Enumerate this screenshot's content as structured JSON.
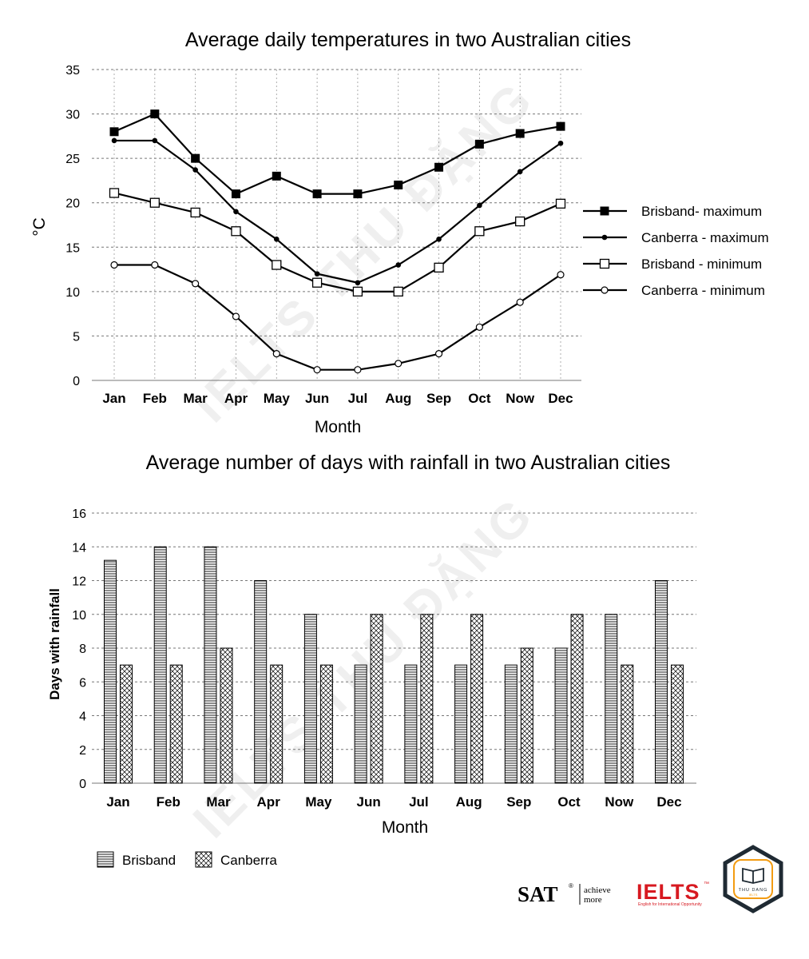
{
  "chart_data": [
    {
      "type": "line",
      "title": "Average daily temperatures in two Australian cities",
      "xlabel": "Month",
      "ylabel": "°C",
      "categories": [
        "Jan",
        "Feb",
        "Mar",
        "Apr",
        "May",
        "Jun",
        "Jul",
        "Aug",
        "Sep",
        "Oct",
        "Now",
        "Dec"
      ],
      "ylim": [
        0,
        35
      ],
      "yticks": [
        0,
        5,
        10,
        15,
        20,
        25,
        30,
        35
      ],
      "grid": true,
      "legend_position": "right",
      "series": [
        {
          "name": "Brisband- maximum",
          "marker": "filled-square",
          "values": [
            28,
            30,
            25,
            21,
            23,
            21,
            21,
            22,
            24,
            26.6,
            27.8,
            28.6
          ]
        },
        {
          "name": "Canberra  - maximum",
          "marker": "filled-circle",
          "values": [
            27,
            27,
            23.7,
            19,
            15.9,
            12,
            11,
            13,
            15.9,
            19.7,
            23.5,
            26.7
          ]
        },
        {
          "name": "Brisband - minimum",
          "marker": "open-square",
          "values": [
            21.1,
            20,
            18.9,
            16.8,
            13,
            11,
            10,
            10,
            12.7,
            16.8,
            17.9,
            19.9
          ]
        },
        {
          "name": "Canberra  - minimum",
          "marker": "open-circle",
          "values": [
            13,
            13,
            10.9,
            7.2,
            3,
            1.2,
            1.2,
            1.9,
            3,
            6,
            8.8,
            11.9
          ]
        }
      ]
    },
    {
      "type": "bar",
      "title": "Average number of days with rainfall in two Australian cities",
      "xlabel": "Month",
      "ylabel": "Days with rainfall",
      "categories": [
        "Jan",
        "Feb",
        "Mar",
        "Apr",
        "May",
        "Jun",
        "Jul",
        "Aug",
        "Sep",
        "Oct",
        "Now",
        "Dec"
      ],
      "ylim": [
        0,
        16
      ],
      "yticks": [
        0,
        2,
        4,
        6,
        8,
        10,
        12,
        14,
        16
      ],
      "grid": true,
      "legend_position": "bottom-left",
      "series": [
        {
          "name": "Brisband",
          "pattern": "horizontal-lines",
          "values": [
            13.2,
            14,
            14,
            12,
            10,
            7,
            7,
            7,
            7,
            8,
            10,
            12
          ]
        },
        {
          "name": "Canberra",
          "pattern": "crosshatch",
          "values": [
            7,
            7,
            8,
            7,
            7,
            10,
            10,
            10,
            8,
            10,
            7,
            7
          ]
        }
      ]
    }
  ],
  "watermark": "IELTS THU ĐẶNG",
  "logos": {
    "sat": {
      "text": "SAT",
      "mark": "®",
      "tagline_1": "achieve",
      "tagline_2": "more"
    },
    "ielts": {
      "text": "IELTS",
      "mark": "™",
      "tagline": "English for International Opportunity",
      "color": "#d71920"
    },
    "badge": {
      "text": "THU DANG",
      "sub": "IELTS",
      "border_color": "#1f2a33",
      "accent": "#f39c12"
    }
  }
}
